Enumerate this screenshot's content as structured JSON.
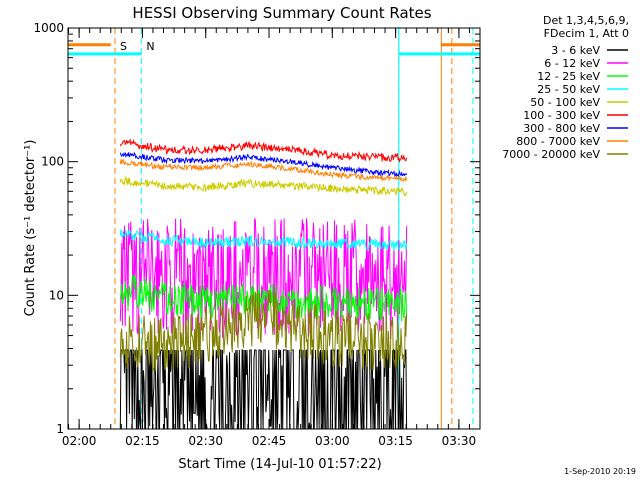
{
  "chart_data": {
    "type": "line",
    "title": "HESSI Observing Summary Count Rates",
    "xlabel": "Start Time (14-Jul-10 01:57:22)",
    "ylabel": "Count Rate (s⁻¹ detector⁻¹)",
    "y_scale": "log",
    "ylim": [
      1,
      1000
    ],
    "xlim": [
      "01:57:22",
      "03:35:00"
    ],
    "grid": false,
    "legend_position": "top-right (outside plot)",
    "legend_header": [
      "Det 1,3,4,5,6,9,",
      "FDecim 1, Att 0"
    ],
    "x_ticks": [
      "02:00",
      "02:15",
      "02:30",
      "02:45",
      "03:00",
      "03:15",
      "03:30"
    ],
    "y_ticks": [
      "1",
      "10",
      "100",
      "1000"
    ],
    "footer": "1-Sep-2010 20:19",
    "data_window": [
      "02:09:45",
      "03:17:40"
    ],
    "markers": [
      {
        "label": "S",
        "time": "02:08:30",
        "color": "#ff8000",
        "style": "dashed"
      },
      {
        "label": "N",
        "time": "02:14:45",
        "color": "#00ffff",
        "style": "dashed"
      },
      {
        "label": "",
        "time": "03:15:45",
        "color": "#00ffff",
        "style": "dashed"
      },
      {
        "label": "",
        "time": "03:28:20",
        "color": "#ff8000",
        "style": "dashed"
      },
      {
        "label": "",
        "time": "03:33:20",
        "color": "#00ffff",
        "style": "dashed"
      }
    ],
    "night_boundaries": [
      {
        "time": "01:57:22",
        "color": "#00ffff"
      },
      {
        "time": "03:15:45",
        "color": "#00ffff"
      },
      {
        "time": "03:25:50",
        "color": "#ff8000"
      }
    ],
    "status_bars": [
      {
        "color": "#ff8000",
        "segments": [
          [
            "01:57:22",
            "02:07:30"
          ],
          [
            "03:25:50",
            "03:35:00"
          ]
        ],
        "level": 750
      },
      {
        "color": "#00ffff",
        "segments": [
          [
            "01:57:22",
            "02:14:45"
          ],
          [
            "03:15:45",
            "03:35:00"
          ]
        ],
        "level": 640
      }
    ],
    "series": [
      {
        "name": "3 - 6 keV",
        "color": "#000000",
        "x": [
          "02:10",
          "02:20",
          "02:30",
          "02:40",
          "02:43",
          "02:50",
          "03:00",
          "03:10",
          "03:17"
        ],
        "values": [
          1.6,
          1.7,
          1.8,
          2.1,
          2.8,
          2.0,
          1.8,
          1.8,
          1.8
        ]
      },
      {
        "name": "6 - 12 keV",
        "color": "#ff00ff",
        "x": [
          "02:10",
          "02:20",
          "02:30",
          "02:40",
          "02:50",
          "03:00",
          "03:10",
          "03:17"
        ],
        "values": [
          14,
          13.5,
          13,
          13.5,
          14,
          13.5,
          13,
          13
        ]
      },
      {
        "name": "12 - 25 keV",
        "color": "#00ff00",
        "x": [
          "02:10",
          "02:20",
          "02:30",
          "02:40",
          "02:50",
          "03:00",
          "03:10",
          "03:17"
        ],
        "values": [
          11,
          9.5,
          9.0,
          9.3,
          9.0,
          8.8,
          8.6,
          8.5
        ]
      },
      {
        "name": "25 - 50 keV",
        "color": "#00ffff",
        "x": [
          "02:10",
          "02:20",
          "02:30",
          "02:40",
          "02:50",
          "03:00",
          "03:10",
          "03:17"
        ],
        "values": [
          29,
          26,
          24.5,
          25.5,
          25,
          24.5,
          24,
          23.5
        ]
      },
      {
        "name": "50 - 100 keV",
        "color": "#cccc00",
        "x": [
          "02:10",
          "02:20",
          "02:30",
          "02:40",
          "02:50",
          "03:00",
          "03:10",
          "03:17"
        ],
        "values": [
          72,
          66,
          64,
          69,
          66,
          63,
          61,
          60
        ]
      },
      {
        "name": "100 - 300 keV",
        "color": "#ff0000",
        "x": [
          "02:10",
          "02:20",
          "02:30",
          "02:40",
          "02:50",
          "03:00",
          "03:10",
          "03:17"
        ],
        "values": [
          140,
          123,
          122,
          132,
          123,
          112,
          108,
          107
        ]
      },
      {
        "name": "300 - 800 keV",
        "color": "#0000ff",
        "x": [
          "02:10",
          "02:20",
          "02:30",
          "02:40",
          "02:50",
          "03:00",
          "03:10",
          "03:17"
        ],
        "values": [
          115,
          103,
          101,
          108,
          100,
          90,
          83,
          80
        ]
      },
      {
        "name": "800 - 7000 keV",
        "color": "#ff8000",
        "x": [
          "02:10",
          "02:20",
          "02:30",
          "02:40",
          "02:50",
          "03:00",
          "03:10",
          "03:17"
        ],
        "values": [
          100,
          91,
          90,
          96,
          89,
          80,
          76,
          74
        ]
      },
      {
        "name": "7000 - 20000 keV",
        "color": "#808000",
        "x": [
          "02:10",
          "02:20",
          "02:30",
          "02:40",
          "02:45",
          "02:50",
          "03:00",
          "03:10",
          "03:17"
        ],
        "values": [
          4.6,
          4.4,
          5.0,
          6.8,
          7.0,
          5.8,
          4.8,
          4.4,
          4.4
        ]
      }
    ]
  }
}
